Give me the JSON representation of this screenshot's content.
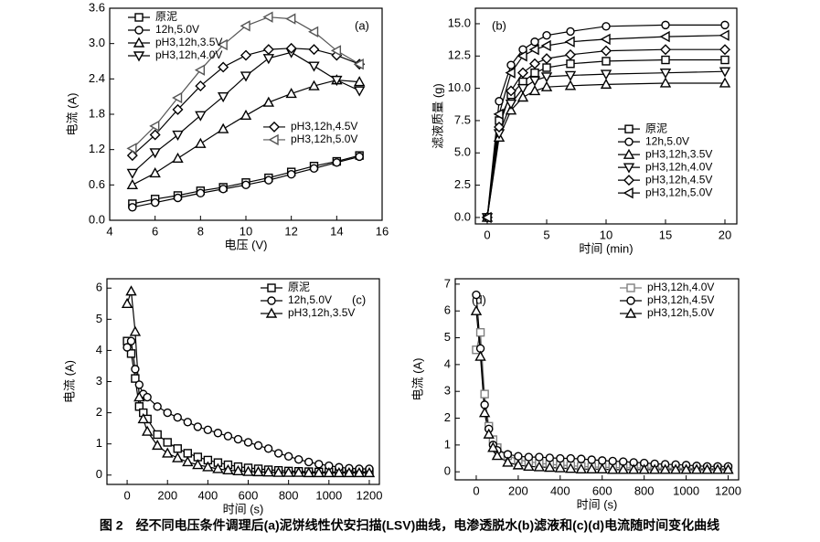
{
  "chart_data": [
    {
      "type": "line",
      "annotation": "(a)",
      "x_label": "电压 (V)",
      "y_label": "电流 (A)",
      "x": [
        5,
        6,
        7,
        8,
        9,
        10,
        11,
        12,
        13,
        14,
        15
      ],
      "xlim": [
        4,
        16
      ],
      "xticks": [
        4,
        6,
        8,
        10,
        12,
        14,
        16
      ],
      "ylim": [
        0,
        3.6
      ],
      "yticks": [
        {
          "value": 0,
          "label": "0.0"
        },
        0.6,
        1.2,
        1.8,
        2.4,
        {
          "value": 3,
          "label": "3.0"
        },
        3.6
      ],
      "legend_loc": [
        "upper left",
        "upper left",
        "upper left",
        "upper left",
        "center right",
        "center right"
      ],
      "series": [
        {
          "name": "原泥",
          "color": "#000000",
          "marker": "square",
          "values": [
            0.28,
            0.36,
            0.42,
            0.5,
            0.56,
            0.64,
            0.72,
            0.82,
            0.92,
            1.0,
            1.1
          ]
        },
        {
          "name": "12h,5.0V",
          "color": "#000000",
          "marker": "circle",
          "values": [
            0.22,
            0.3,
            0.38,
            0.46,
            0.53,
            0.6,
            0.68,
            0.78,
            0.88,
            0.98,
            1.08
          ]
        },
        {
          "name": "pH3,12h,3.5V",
          "color": "#000000",
          "marker": "triangle-up",
          "values": [
            0.6,
            0.8,
            1.05,
            1.3,
            1.55,
            1.78,
            2.0,
            2.15,
            2.28,
            2.38,
            2.35
          ]
        },
        {
          "name": "pH3,12h,4.0V",
          "color": "#000000",
          "marker": "triangle-down",
          "values": [
            0.8,
            1.15,
            1.45,
            1.78,
            2.1,
            2.45,
            2.75,
            2.85,
            2.62,
            2.38,
            2.2
          ]
        },
        {
          "name": "pH3,12h,4.5V",
          "color": "#000000",
          "marker": "diamond",
          "values": [
            1.1,
            1.45,
            1.88,
            2.28,
            2.6,
            2.8,
            2.9,
            2.92,
            2.9,
            2.8,
            2.65
          ]
        },
        {
          "name": "pH3,12h,5.0V",
          "color": "#555555",
          "marker": "triangle-left",
          "values": [
            1.22,
            1.6,
            2.08,
            2.55,
            2.98,
            3.3,
            3.45,
            3.42,
            3.2,
            2.88,
            2.65
          ]
        }
      ]
    },
    {
      "type": "line",
      "annotation": "(b)",
      "x_label": "时间 (min)",
      "y_label": "滤液质量 (g)",
      "x": [
        0,
        1,
        2,
        3,
        4,
        5,
        7,
        10,
        15,
        20
      ],
      "xlim": [
        -1,
        21
      ],
      "xticks": [
        0,
        5,
        10,
        15,
        20
      ],
      "ylim": [
        -0.5,
        16.2
      ],
      "yticks": [
        {
          "value": 0,
          "label": "0.0"
        },
        2.5,
        {
          "value": 5,
          "label": "5.0"
        },
        7.5,
        {
          "value": 10,
          "label": "10.0"
        },
        12.5,
        {
          "value": 15,
          "label": "15.0"
        }
      ],
      "legend_loc": "center right",
      "series": [
        {
          "name": "原泥",
          "color": "#000000",
          "marker": "square",
          "values": [
            0,
            7.5,
            9.5,
            10.5,
            11.2,
            11.6,
            11.9,
            12.1,
            12.2,
            12.2
          ]
        },
        {
          "name": "12h,5.0V",
          "color": "#000000",
          "marker": "circle",
          "values": [
            0,
            9,
            11.8,
            13,
            13.6,
            14.1,
            14.4,
            14.8,
            14.9,
            14.9
          ]
        },
        {
          "name": "pH3,12h,3.5V",
          "color": "#000000",
          "marker": "triangle-up",
          "values": [
            0,
            6.2,
            8.3,
            9.3,
            9.8,
            10.1,
            10.2,
            10.3,
            10.4,
            10.4
          ]
        },
        {
          "name": "pH3,12h,4.0V",
          "color": "#000000",
          "marker": "triangle-down",
          "values": [
            0,
            6.5,
            8.8,
            10,
            10.6,
            10.9,
            11,
            11.1,
            11.2,
            11.3
          ]
        },
        {
          "name": "pH3,12h,4.5V",
          "color": "#000000",
          "marker": "diamond",
          "values": [
            0,
            7,
            9.8,
            11.2,
            11.9,
            12.3,
            12.6,
            12.9,
            13,
            13
          ]
        },
        {
          "name": "pH3,12h,5.0V",
          "color": "#000000",
          "marker": "triangle-left",
          "values": [
            0,
            8,
            11.2,
            12.5,
            13,
            13.3,
            13.6,
            13.8,
            14,
            14.1
          ]
        }
      ]
    },
    {
      "type": "line",
      "annotation": "(c)",
      "x_label": "时间 (s)",
      "y_label": "电流 (A)",
      "x": [
        0,
        20,
        40,
        60,
        80,
        100,
        150,
        200,
        250,
        300,
        350,
        400,
        450,
        500,
        550,
        600,
        650,
        700,
        750,
        800,
        850,
        900,
        950,
        1000,
        1050,
        1100,
        1150,
        1200
      ],
      "xlim": [
        -100,
        1250
      ],
      "xticks": [
        0,
        200,
        400,
        600,
        800,
        1000,
        1200
      ],
      "ylim": [
        -0.3,
        6.3
      ],
      "yticks": [
        0,
        1,
        2,
        3,
        4,
        5,
        6
      ],
      "legend_loc": "upper right",
      "series": [
        {
          "name": "原泥",
          "color": "#000000",
          "marker": "square",
          "values": [
            4.3,
            3.9,
            3.1,
            2.2,
            2.0,
            1.8,
            1.3,
            1.05,
            0.85,
            0.7,
            0.58,
            0.48,
            0.4,
            0.33,
            0.27,
            0.23,
            0.2,
            0.17,
            0.15,
            0.13,
            0.12,
            0.11,
            0.1,
            0.1,
            0.1,
            0.1,
            0.1,
            0.1
          ]
        },
        {
          "name": "12h,5.0V",
          "color": "#000000",
          "marker": "circle",
          "values": [
            4.1,
            4.3,
            3.4,
            2.9,
            2.6,
            2.5,
            2.2,
            2.0,
            1.85,
            1.7,
            1.55,
            1.45,
            1.35,
            1.25,
            1.15,
            1.05,
            0.95,
            0.85,
            0.7,
            0.6,
            0.5,
            0.42,
            0.35,
            0.3,
            0.25,
            0.22,
            0.2,
            0.2
          ]
        },
        {
          "name": "pH3,12h,3.5V",
          "color": "#000000",
          "marker": "triangle-up",
          "values": [
            5.5,
            5.9,
            4.6,
            2.5,
            1.8,
            1.4,
            0.95,
            0.7,
            0.55,
            0.42,
            0.33,
            0.26,
            0.2,
            0.16,
            0.13,
            0.11,
            0.1,
            0.09,
            0.08,
            0.08,
            0.08,
            0.07,
            0.07,
            0.07,
            0.07,
            0.07,
            0.07,
            0.07
          ]
        }
      ]
    },
    {
      "type": "line",
      "annotation": "(d)",
      "x_label": "时间 (s)",
      "y_label": "电流 (A)",
      "x": [
        0,
        20,
        40,
        60,
        80,
        100,
        150,
        200,
        250,
        300,
        350,
        400,
        450,
        500,
        550,
        600,
        650,
        700,
        750,
        800,
        850,
        900,
        950,
        1000,
        1050,
        1100,
        1150,
        1200
      ],
      "xlim": [
        -100,
        1250
      ],
      "xticks": [
        0,
        200,
        400,
        600,
        800,
        1000,
        1200
      ],
      "ylim": [
        -0.3,
        7.2
      ],
      "yticks": [
        0,
        1,
        2,
        3,
        4,
        5,
        6,
        7
      ],
      "legend_loc": "upper right",
      "series": [
        {
          "name": "pH3,12h,4.0V",
          "color": "#808080",
          "marker": "square",
          "values": [
            4.55,
            5.2,
            2.9,
            1.7,
            1.2,
            0.9,
            0.6,
            0.45,
            0.38,
            0.32,
            0.28,
            0.25,
            0.23,
            0.2,
            0.18,
            0.17,
            0.16,
            0.15,
            0.15,
            0.14,
            0.14,
            0.13,
            0.13,
            0.13,
            0.12,
            0.12,
            0.12,
            0.12
          ]
        },
        {
          "name": "pH3,12h,4.5V",
          "color": "#000000",
          "marker": "circle",
          "values": [
            6.6,
            4.6,
            2.5,
            1.6,
            1.0,
            0.8,
            0.65,
            0.58,
            0.55,
            0.55,
            0.52,
            0.5,
            0.5,
            0.48,
            0.45,
            0.42,
            0.4,
            0.38,
            0.35,
            0.33,
            0.3,
            0.28,
            0.27,
            0.25,
            0.22,
            0.2,
            0.2,
            0.2
          ]
        },
        {
          "name": "pH3,12h,5.0V",
          "color": "#000000",
          "marker": "triangle-up",
          "values": [
            6.0,
            4.3,
            2.2,
            1.4,
            0.9,
            0.6,
            0.35,
            0.25,
            0.2,
            0.18,
            0.16,
            0.14,
            0.12,
            0.1,
            0.1,
            0.1,
            0.08,
            0.08,
            0.08,
            0.08,
            0.08,
            0.08,
            0.08,
            0.08,
            0.08,
            0.08,
            0.08,
            0.08
          ]
        }
      ]
    }
  ],
  "caption": "图 2　经不同电压条件调理后(a)泥饼线性伏安扫描(LSV)曲线，电渗透脱水(b)滤液和(c)(d)电流随时间变化曲线"
}
